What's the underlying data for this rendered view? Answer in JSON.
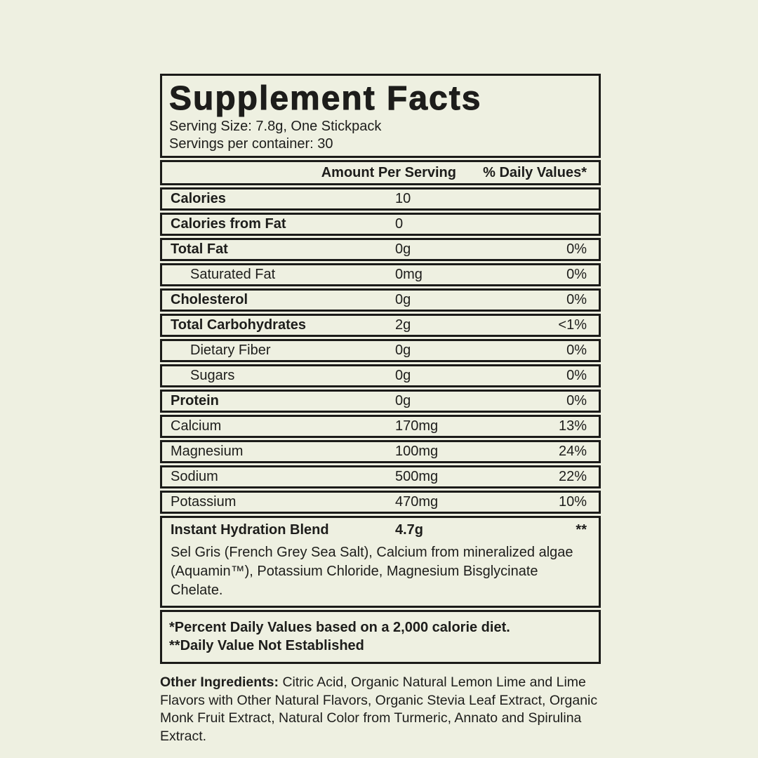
{
  "colors": {
    "background": "#eef0e1",
    "border": "#1b1b19",
    "text": "#1d1d1b"
  },
  "label": {
    "title": "Supplement Facts",
    "serving_size": "Serving Size: 7.8g, One Stickpack",
    "servings_per_container": "Servings per container: 30",
    "columns": {
      "amount": "Amount Per Serving",
      "dv": "% Daily Values*"
    },
    "rows": [
      {
        "name": "Calories",
        "amount": "10",
        "dv": "",
        "bold": true,
        "indent": false
      },
      {
        "name": "Calories from Fat",
        "amount": "0",
        "dv": "",
        "bold": true,
        "indent": false
      },
      {
        "name": "Total Fat",
        "amount": "0g",
        "dv": "0%",
        "bold": true,
        "indent": false
      },
      {
        "name": "Saturated Fat",
        "amount": "0mg",
        "dv": "0%",
        "bold": false,
        "indent": true
      },
      {
        "name": "Cholesterol",
        "amount": "0g",
        "dv": "0%",
        "bold": true,
        "indent": false
      },
      {
        "name": "Total Carbohydrates",
        "amount": "2g",
        "dv": "<1%",
        "bold": true,
        "indent": false
      },
      {
        "name": "Dietary Fiber",
        "amount": "0g",
        "dv": "0%",
        "bold": false,
        "indent": true
      },
      {
        "name": "Sugars",
        "amount": "0g",
        "dv": "0%",
        "bold": false,
        "indent": true
      },
      {
        "name": "Protein",
        "amount": "0g",
        "dv": "0%",
        "bold": true,
        "indent": false
      },
      {
        "name": "Calcium",
        "amount": "170mg",
        "dv": "13%",
        "bold": false,
        "indent": false
      },
      {
        "name": "Magnesium",
        "amount": "100mg",
        "dv": "24%",
        "bold": false,
        "indent": false
      },
      {
        "name": "Sodium",
        "amount": "500mg",
        "dv": "22%",
        "bold": false,
        "indent": false
      },
      {
        "name": "Potassium",
        "amount": "470mg",
        "dv": "10%",
        "bold": false,
        "indent": false
      }
    ],
    "blend": {
      "name": "Instant Hydration Blend",
      "amount": "4.7g",
      "dv": "**",
      "ingredients": "Sel Gris (French Grey Sea Salt), Calcium from mineralized algae (Aquamin™), Potassium Chloride, Magnesium Bisglycinate Chelate."
    },
    "footnotes": [
      "*Percent Daily Values based on a 2,000 calorie diet.",
      "**Daily Value Not Established"
    ],
    "other_ingredients": {
      "label": "Other Ingredients:",
      "text": "Citric Acid, Organic Natural Lemon Lime and Lime Flavors with Other Natural Flavors, Organic Stevia Leaf Extract, Organic Monk Fruit Extract, Natural Color from Turmeric, Annato and Spirulina Extract."
    }
  }
}
